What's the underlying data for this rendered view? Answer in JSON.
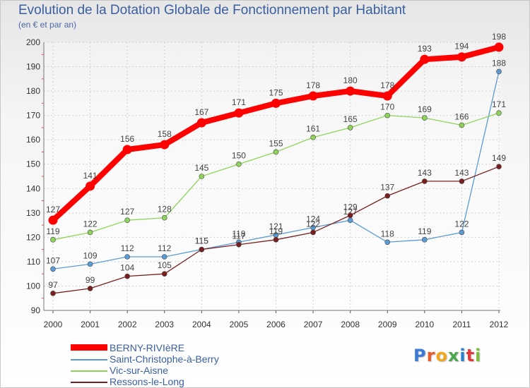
{
  "header": {
    "title": "Evolution de la Dotation Globale de Fonctionnement par Habitant",
    "subtitle": "(en € et par an)"
  },
  "logo": {
    "text": "Proxiti",
    "colors": [
      "#3a7bd5",
      "#e65c2c",
      "#f0a81c",
      "#4aa84a",
      "#2b7fd0",
      "#e03a3a",
      "#7cbd3c"
    ]
  },
  "chart_data": {
    "type": "line",
    "title": "Evolution de la Dotation Globale de Fonctionnement par Habitant",
    "subtitle": "(en € et par an)",
    "x": [
      "2000",
      "2001",
      "2002",
      "2003",
      "2004",
      "2005",
      "2006",
      "2007",
      "2008",
      "2009",
      "2010",
      "2011",
      "2012"
    ],
    "ylim": [
      90,
      200
    ],
    "yticks": [
      90,
      100,
      110,
      120,
      130,
      140,
      150,
      160,
      170,
      180,
      190,
      200
    ],
    "grid": true,
    "series": [
      {
        "name": "BERNY-RIVIèRE",
        "color": "#ff0000",
        "weight": "thick",
        "values": [
          127,
          141,
          156,
          158,
          167,
          171,
          175,
          178,
          180,
          178,
          193,
          194,
          198
        ]
      },
      {
        "name": "Saint-Christophe-à-Berry",
        "color": "#5b9bd5",
        "weight": "thin",
        "values": [
          107,
          109,
          112,
          112,
          115,
          118,
          121,
          124,
          127,
          118,
          119,
          122,
          188
        ]
      },
      {
        "name": "Vic-sur-Aisne",
        "color": "#8fd45a",
        "weight": "thin",
        "values": [
          119,
          122,
          127,
          128,
          145,
          150,
          155,
          161,
          165,
          170,
          169,
          166,
          171
        ]
      },
      {
        "name": "Ressons-le-Long",
        "color": "#7a1f1f",
        "weight": "thin",
        "values": [
          97,
          99,
          104,
          105,
          115,
          117,
          119,
          122,
          129,
          137,
          143,
          143,
          149
        ]
      }
    ]
  }
}
